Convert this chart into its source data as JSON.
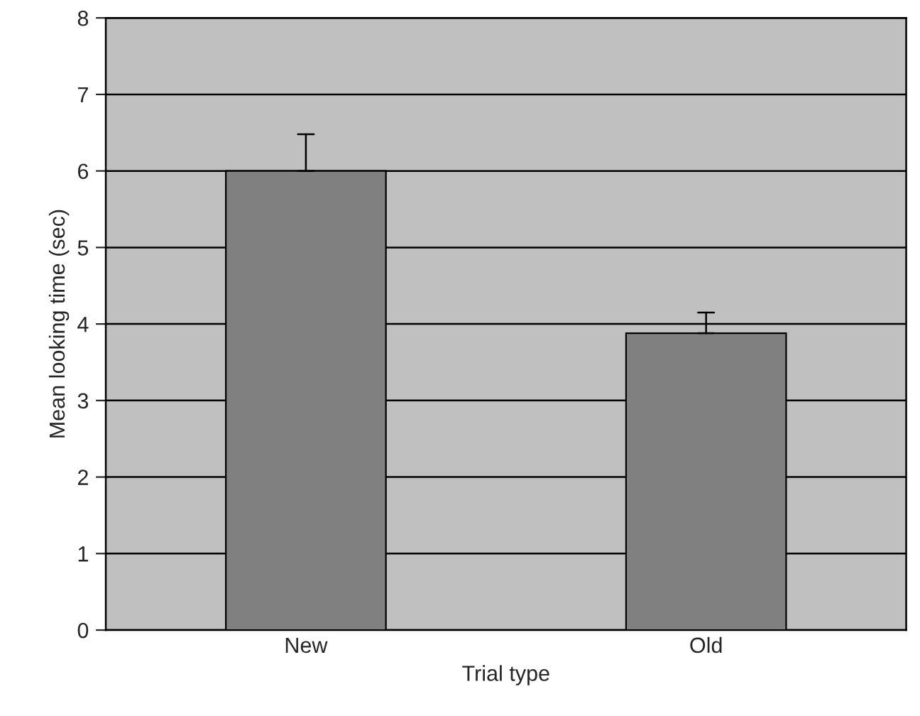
{
  "chart_data": {
    "type": "bar",
    "xlabel": "Trial type",
    "ylabel": "Mean looking time (sec)",
    "categories": [
      "New",
      "Old"
    ],
    "values": [
      6.0,
      3.88
    ],
    "errors": [
      [
        6.0,
        6.48
      ],
      [
        3.88,
        4.15
      ]
    ],
    "color": "#808080",
    "ylim": [
      0,
      8
    ],
    "yticks": [
      0,
      1,
      2,
      3,
      4,
      5,
      6,
      7,
      8
    ],
    "grid": "y",
    "legend": false
  }
}
